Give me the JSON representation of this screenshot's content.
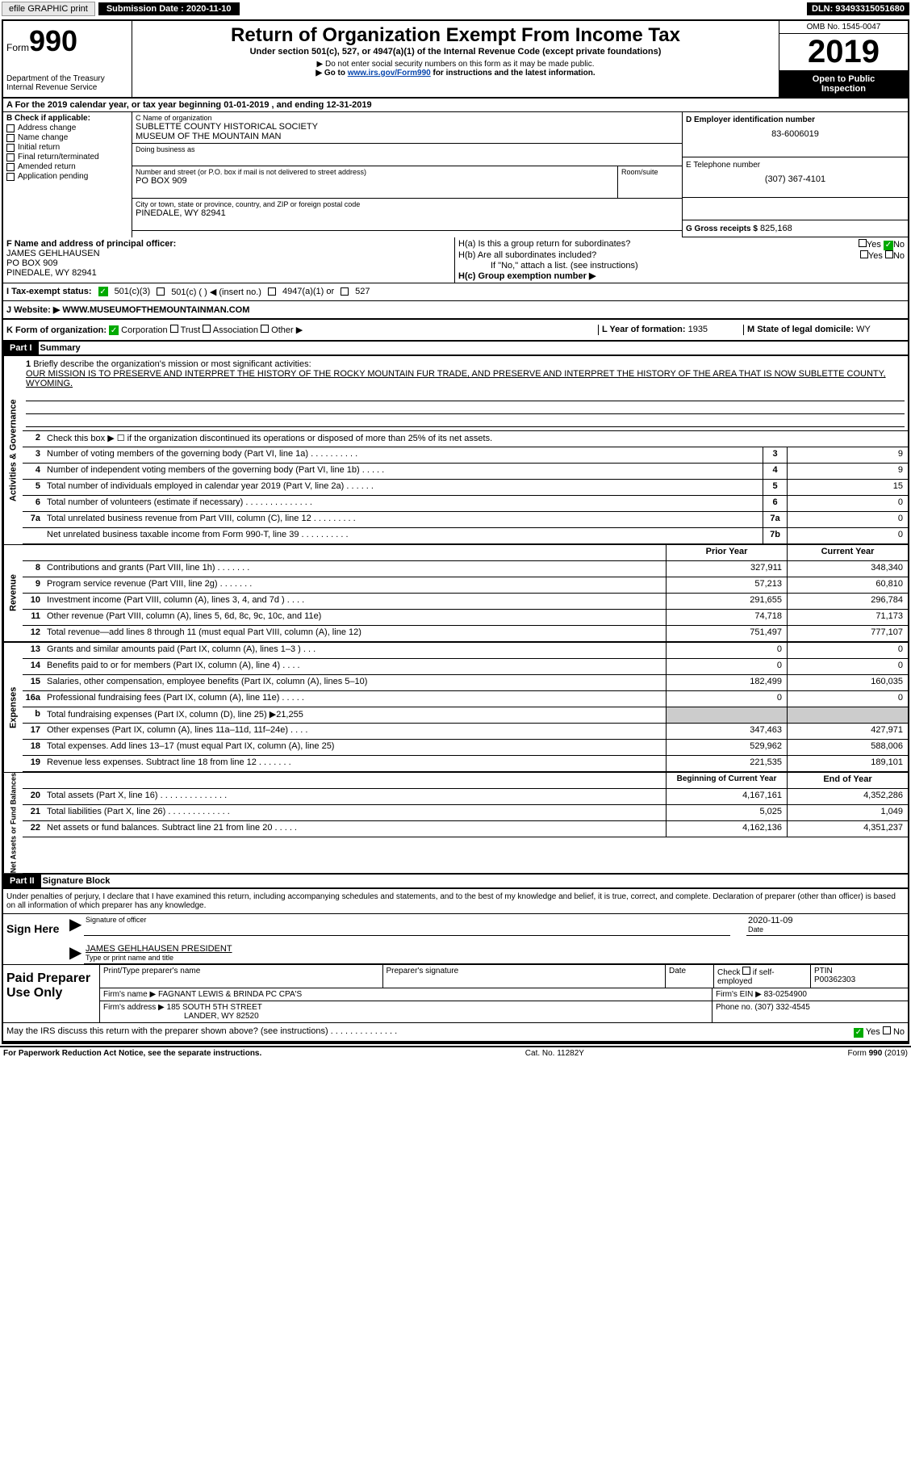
{
  "topbar": {
    "efile": "efile GRAPHIC print",
    "submission_label": "Submission Date :",
    "submission_date": "2020-11-10",
    "dln": "DLN: 93493315051680"
  },
  "header": {
    "form_word": "Form",
    "form_num": "990",
    "dept1": "Department of the Treasury",
    "dept2": "Internal Revenue Service",
    "title": "Return of Organization Exempt From Income Tax",
    "subtitle": "Under section 501(c), 527, or 4947(a)(1) of the Internal Revenue Code (except private foundations)",
    "note1": "▶ Do not enter social security numbers on this form as it may be made public.",
    "note2_pre": "▶ Go to ",
    "note2_link": "www.irs.gov/Form990",
    "note2_post": " for instructions and the latest information.",
    "omb": "OMB No. 1545-0047",
    "year": "2019",
    "inspect1": "Open to Public",
    "inspect2": "Inspection"
  },
  "period": "A For the 2019 calendar year, or tax year beginning 01-01-2019   , and ending 12-31-2019",
  "b": {
    "header": "B Check if applicable:",
    "opts": [
      "Address change",
      "Name change",
      "Initial return",
      "Final return/terminated",
      "Amended return",
      "Application pending"
    ]
  },
  "c": {
    "name_label": "C Name of organization",
    "name1": "SUBLETTE COUNTY HISTORICAL SOCIETY",
    "name2": "MUSEUM OF THE MOUNTAIN MAN",
    "dba_label": "Doing business as",
    "addr_label": "Number and street (or P.O. box if mail is not delivered to street address)",
    "room_label": "Room/suite",
    "addr": "PO BOX 909",
    "city_label": "City or town, state or province, country, and ZIP or foreign postal code",
    "city": "PINEDALE, WY  82941"
  },
  "d": {
    "label": "D Employer identification number",
    "val": "83-6006019"
  },
  "e": {
    "label": "E Telephone number",
    "val": "(307) 367-4101"
  },
  "g": {
    "label": "G Gross receipts $",
    "val": "825,168"
  },
  "f": {
    "label": "F  Name and address of principal officer:",
    "name": "JAMES GEHLHAUSEN",
    "addr1": "PO BOX 909",
    "addr2": "PINEDALE, WY  82941"
  },
  "h": {
    "a_label": "H(a)  Is this a group return for subordinates?",
    "a_yes": "Yes",
    "a_no": "No",
    "b_label": "H(b)  Are all subordinates included?",
    "b_yes": "Yes",
    "b_no": "No",
    "b_note": "If \"No,\" attach a list. (see instructions)",
    "c_label": "H(c)  Group exemption number ▶"
  },
  "i": {
    "label": "I  Tax-exempt status:",
    "o1": "501(c)(3)",
    "o2": "501(c) (  ) ◀ (insert no.)",
    "o3": "4947(a)(1) or",
    "o4": "527"
  },
  "j": {
    "label": "J  Website: ▶",
    "val": "WWW.MUSEUMOFTHEMOUNTAINMAN.COM"
  },
  "k": {
    "label": "K Form of organization:",
    "o1": "Corporation",
    "o2": "Trust",
    "o3": "Association",
    "o4": "Other ▶"
  },
  "l": {
    "label": "L Year of formation:",
    "val": "1935"
  },
  "m": {
    "label": "M State of legal domicile:",
    "val": "WY"
  },
  "part1": {
    "header": "Part I",
    "title": "Summary"
  },
  "mission": {
    "num": "1",
    "label": "Briefly describe the organization's mission or most significant activities:",
    "text": "OUR MISSION IS TO PRESERVE AND INTERPRET THE HISTORY OF THE ROCKY MOUNTAIN FUR TRADE, AND PRESERVE AND INTERPRET THE HISTORY OF THE AREA THAT IS NOW SUBLETTE COUNTY, WYOMING."
  },
  "gov": {
    "l2": "Check this box ▶ ☐  if the organization discontinued its operations or disposed of more than 25% of its net assets.",
    "rows": [
      {
        "n": "3",
        "t": "Number of voting members of the governing body (Part VI, line 1a)  .  .  .  .  .  .  .  .  .  .",
        "b": "3",
        "v": "9"
      },
      {
        "n": "4",
        "t": "Number of independent voting members of the governing body (Part VI, line 1b)  .  .  .  .  .",
        "b": "4",
        "v": "9"
      },
      {
        "n": "5",
        "t": "Total number of individuals employed in calendar year 2019 (Part V, line 2a)  .  .  .  .  .  .",
        "b": "5",
        "v": "15"
      },
      {
        "n": "6",
        "t": "Total number of volunteers (estimate if necessary)   .  .  .  .  .  .  .  .  .  .  .  .  .  .",
        "b": "6",
        "v": "0"
      },
      {
        "n": "7a",
        "t": "Total unrelated business revenue from Part VIII, column (C), line 12  .  .  .  .  .  .  .  .  .",
        "b": "7a",
        "v": "0"
      },
      {
        "n": "",
        "t": "Net unrelated business taxable income from Form 990-T, line 39   .  .  .  .  .  .  .  .  .  .",
        "b": "7b",
        "v": "0"
      }
    ]
  },
  "cols": {
    "prior": "Prior Year",
    "current": "Current Year"
  },
  "rev": {
    "rows": [
      {
        "n": "8",
        "t": "Contributions and grants (Part VIII, line 1h)   .  .  .  .  .  .  .",
        "p": "327,911",
        "c": "348,340"
      },
      {
        "n": "9",
        "t": "Program service revenue (Part VIII, line 2g)   .  .  .  .  .  .  .",
        "p": "57,213",
        "c": "60,810"
      },
      {
        "n": "10",
        "t": "Investment income (Part VIII, column (A), lines 3, 4, and 7d )  .  .  .  .",
        "p": "291,655",
        "c": "296,784"
      },
      {
        "n": "11",
        "t": "Other revenue (Part VIII, column (A), lines 5, 6d, 8c, 9c, 10c, and 11e)",
        "p": "74,718",
        "c": "71,173"
      },
      {
        "n": "12",
        "t": "Total revenue—add lines 8 through 11 (must equal Part VIII, column (A), line 12)",
        "p": "751,497",
        "c": "777,107"
      }
    ]
  },
  "exp": {
    "rows": [
      {
        "n": "13",
        "t": "Grants and similar amounts paid (Part IX, column (A), lines 1–3 )  .  .  .",
        "p": "0",
        "c": "0"
      },
      {
        "n": "14",
        "t": "Benefits paid to or for members (Part IX, column (A), line 4)  .  .  .  .",
        "p": "0",
        "c": "0"
      },
      {
        "n": "15",
        "t": "Salaries, other compensation, employee benefits (Part IX, column (A), lines 5–10)",
        "p": "182,499",
        "c": "160,035"
      },
      {
        "n": "16a",
        "t": "Professional fundraising fees (Part IX, column (A), line 11e)  .  .  .  .  .",
        "p": "0",
        "c": "0"
      },
      {
        "n": "b",
        "t": "Total fundraising expenses (Part IX, column (D), line 25) ▶21,255",
        "p": "",
        "c": "",
        "grey": true
      },
      {
        "n": "17",
        "t": "Other expenses (Part IX, column (A), lines 11a–11d, 11f–24e)  .  .  .  .",
        "p": "347,463",
        "c": "427,971"
      },
      {
        "n": "18",
        "t": "Total expenses. Add lines 13–17 (must equal Part IX, column (A), line 25)",
        "p": "529,962",
        "c": "588,006"
      },
      {
        "n": "19",
        "t": "Revenue less expenses. Subtract line 18 from line 12  .  .  .  .  .  .  .",
        "p": "221,535",
        "c": "189,101"
      }
    ]
  },
  "net": {
    "h1": "Beginning of Current Year",
    "h2": "End of Year",
    "rows": [
      {
        "n": "20",
        "t": "Total assets (Part X, line 16)  .  .  .  .  .  .  .  .  .  .  .  .  .  .",
        "p": "4,167,161",
        "c": "4,352,286"
      },
      {
        "n": "21",
        "t": "Total liabilities (Part X, line 26)  .  .  .  .  .  .  .  .  .  .  .  .  .",
        "p": "5,025",
        "c": "1,049"
      },
      {
        "n": "22",
        "t": "Net assets or fund balances. Subtract line 21 from line 20  .  .  .  .  .",
        "p": "4,162,136",
        "c": "4,351,237"
      }
    ]
  },
  "part2": {
    "header": "Part II",
    "title": "Signature Block"
  },
  "sig": {
    "decl": "Under penalties of perjury, I declare that I have examined this return, including accompanying schedules and statements, and to the best of my knowledge and belief, it is true, correct, and complete. Declaration of preparer (other than officer) is based on all information of which preparer has any knowledge.",
    "sign_here": "Sign Here",
    "sig_label": "Signature of officer",
    "date_label": "Date",
    "date_val": "2020-11-09",
    "name": "JAMES GEHLHAUSEN  PRESIDENT",
    "name_label": "Type or print name and title"
  },
  "prep": {
    "title": "Paid Preparer Use Only",
    "h1": "Print/Type preparer's name",
    "h2": "Preparer's signature",
    "h3": "Date",
    "h4_pre": "Check",
    "h4_post": "if self-employed",
    "ptin_label": "PTIN",
    "ptin": "P00362303",
    "firm_label": "Firm's name    ▶",
    "firm": "FAGNANT LEWIS & BRINDA PC CPA'S",
    "ein_label": "Firm's EIN ▶",
    "ein": "83-0254900",
    "addr_label": "Firm's address ▶",
    "addr1": "185 SOUTH 5TH STREET",
    "addr2": "LANDER, WY  82520",
    "phone_label": "Phone no.",
    "phone": "(307) 332-4545"
  },
  "discuss": {
    "text": "May the IRS discuss this return with the preparer shown above? (see instructions)   .  .  .  .  .  .  .  .  .  .  .  .  .  .",
    "yes": "Yes",
    "no": "No"
  },
  "footer": {
    "left": "For Paperwork Reduction Act Notice, see the separate instructions.",
    "mid": "Cat. No. 11282Y",
    "right": "Form 990 (2019)"
  },
  "vtabs": {
    "gov": "Activities & Governance",
    "rev": "Revenue",
    "exp": "Expenses",
    "net": "Net Assets or Fund Balances"
  }
}
